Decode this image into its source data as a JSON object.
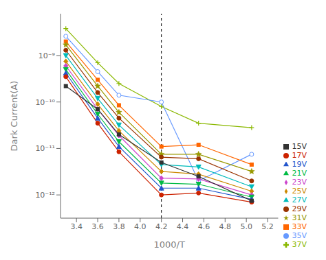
{
  "chart_data": {
    "type": "line",
    "xlabel": "1000/T",
    "ylabel": "Dark Current(A)",
    "log": "y",
    "grid": false,
    "legend": "lower right",
    "xlim": [
      3.25,
      5.3
    ],
    "xticks": [
      3.4,
      3.6,
      3.8,
      {
        "value": 4.0,
        "label": "4.0"
      },
      4.2,
      4.4,
      4.6,
      4.8,
      {
        "value": 5.0,
        "label": "5.0"
      },
      5.2
    ],
    "ylim": [
      3.162277660168379e-13,
      7.943282347242822e-09
    ],
    "yticks": [
      {
        "value": 1e-12,
        "label": "10⁻¹²"
      },
      {
        "value": 1e-11,
        "label": "10⁻¹¹"
      },
      {
        "value": 1e-10,
        "label": "10⁻¹⁰"
      },
      {
        "value": 1e-09,
        "label": "10⁻⁹"
      }
    ],
    "vline": 4.2,
    "x": [
      3.3,
      3.6,
      3.8,
      4.2,
      4.55,
      5.05
    ],
    "series": [
      {
        "name": "37V",
        "color": "#8ab800",
        "marker": "plus",
        "values": [
          3.8e-09,
          7e-10,
          2.5e-10,
          8e-11,
          3.5e-11,
          2.8e-11
        ]
      },
      {
        "name": "35V",
        "color": "#6699ff",
        "marker": "circle-open",
        "values": [
          2.6e-09,
          4.5e-10,
          1.4e-10,
          1e-10,
          2e-12,
          7.5e-12
        ]
      },
      {
        "name": "33V",
        "color": "#ff6600",
        "marker": "square",
        "values": [
          2e-09,
          3e-10,
          8.5e-11,
          1.1e-11,
          1.2e-11,
          4.5e-12
        ]
      },
      {
        "name": "31V",
        "color": "#999900",
        "marker": "star",
        "values": [
          1.7e-09,
          2.2e-10,
          6e-11,
          7.5e-12,
          7.5e-12,
          3.2e-12
        ]
      },
      {
        "name": "29V",
        "color": "#993300",
        "marker": "circle",
        "values": [
          1.3e-09,
          1.6e-10,
          4.5e-11,
          6.5e-12,
          6e-12,
          2e-12
        ]
      },
      {
        "name": "27V",
        "color": "#00bbbb",
        "marker": "triangle-down",
        "values": [
          1e-09,
          1.2e-10,
          3.2e-11,
          4.5e-12,
          4e-12,
          1.5e-12
        ]
      },
      {
        "name": "25V",
        "color": "#cc8800",
        "marker": "diamond",
        "values": [
          7.5e-10,
          9e-11,
          2.4e-11,
          3.2e-12,
          2.8e-12,
          1.2e-12
        ]
      },
      {
        "name": "23V",
        "color": "#cc44cc",
        "marker": "diamond",
        "values": [
          6e-10,
          7e-11,
          1.9e-11,
          2.3e-12,
          2.2e-12,
          1e-12
        ]
      },
      {
        "name": "21V",
        "color": "#00bb44",
        "marker": "triangle-down",
        "values": [
          5e-10,
          5.5e-11,
          1.4e-11,
          1.8e-12,
          1.7e-12,
          9e-13
        ]
      },
      {
        "name": "19V",
        "color": "#2255cc",
        "marker": "triangle-up",
        "values": [
          4.2e-10,
          4.5e-11,
          1.1e-11,
          1.4e-12,
          1.4e-12,
          8e-13
        ]
      },
      {
        "name": "17V",
        "color": "#cc2200",
        "marker": "circle",
        "values": [
          3.5e-10,
          3.5e-11,
          8.5e-12,
          1e-12,
          1.1e-12,
          7e-13
        ]
      },
      {
        "name": "15V",
        "color": "#333333",
        "marker": "square",
        "values": [
          2.2e-10,
          7e-11,
          2e-11,
          5e-12,
          2.5e-12,
          7.5e-13
        ]
      }
    ]
  }
}
